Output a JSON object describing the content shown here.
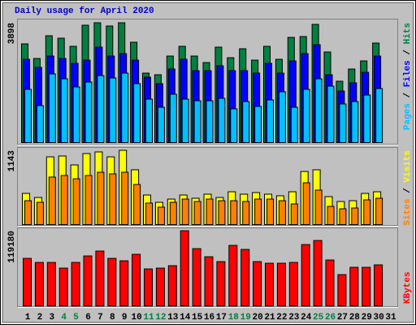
{
  "chart_data": [
    {
      "type": "bar",
      "title": "Daily usage for April 2020",
      "title_color": "#0000cc",
      "ylim": [
        0,
        3898
      ],
      "yticks": [
        3898
      ],
      "legend_separator": " / ",
      "series": [
        {
          "name": "Hits",
          "color": "#008040",
          "values": [
            3209,
            2731,
            3474,
            3394,
            3129,
            3818,
            3898,
            3792,
            3898,
            3262,
            2254,
            2201,
            2811,
            3129,
            2811,
            2599,
            3102,
            2758,
            3049,
            2678,
            3129,
            2705,
            3421,
            3447,
            3845,
            2943,
            1989,
            2387,
            2652,
            3235,
            null
          ]
        },
        {
          "name": "Files",
          "color": "#0000ff",
          "values": [
            2705,
            2440,
            2811,
            2731,
            2572,
            2678,
            3102,
            2811,
            2890,
            2678,
            2121,
            1909,
            2387,
            2705,
            2334,
            2334,
            2493,
            2334,
            2334,
            2254,
            2572,
            2254,
            2652,
            2890,
            3182,
            2201,
            1670,
            1936,
            2280,
            2811,
            null
          ]
        },
        {
          "name": "Pages",
          "color": "#00c0ff",
          "values": [
            1724,
            1193,
            2227,
            2068,
            1803,
            1962,
            2174,
            2095,
            2254,
            1909,
            1405,
            1140,
            1564,
            1405,
            1352,
            1352,
            1432,
            1087,
            1326,
            1167,
            1379,
            1644,
            1140,
            1724,
            2068,
            1829,
            1246,
            1326,
            1538,
            1750,
            null
          ]
        }
      ]
    },
    {
      "type": "bar",
      "ylim": [
        0,
        1143
      ],
      "yticks": [
        1143
      ],
      "legend_separator": " / ",
      "series": [
        {
          "name": "Visits",
          "color": "#ffff00",
          "values": [
            477,
            414,
            1042,
            1055,
            917,
            1093,
            1118,
            1042,
            1143,
            842,
            452,
            339,
            389,
            452,
            402,
            465,
            414,
            502,
            465,
            490,
            465,
            440,
            502,
            816,
            842,
            427,
            352,
            364,
            477,
            502,
            null
          ]
        },
        {
          "name": "Sites",
          "color": "#ff8000",
          "values": [
            364,
            339,
            729,
            754,
            703,
            754,
            804,
            779,
            804,
            615,
            327,
            264,
            339,
            389,
            352,
            389,
            364,
            364,
            352,
            389,
            389,
            364,
            314,
            641,
            528,
            276,
            239,
            251,
            377,
            402,
            null
          ]
        }
      ]
    },
    {
      "type": "bar",
      "ylim": [
        0,
        119180
      ],
      "yticks": [
        119180
      ],
      "categories": [
        "1",
        "2",
        "3",
        "4",
        "5",
        "6",
        "7",
        "8",
        "9",
        "10",
        "11",
        "12",
        "13",
        "14",
        "15",
        "16",
        "17",
        "18",
        "19",
        "20",
        "21",
        "22",
        "23",
        "24",
        "25",
        "26",
        "27",
        "28",
        "29",
        "30",
        "31"
      ],
      "category_colors": [
        "#000000",
        "#000000",
        "#000000",
        "#008040",
        "#008040",
        "#000000",
        "#000000",
        "#000000",
        "#000000",
        "#000000",
        "#008040",
        "#008040",
        "#000000",
        "#000000",
        "#000000",
        "#000000",
        "#000000",
        "#008040",
        "#008040",
        "#000000",
        "#000000",
        "#000000",
        "#000000",
        "#000000",
        "#008040",
        "#008040",
        "#000000",
        "#000000",
        "#000000",
        "#000000",
        "#000000"
      ],
      "series": [
        {
          "name": "KBytes",
          "color": "#ff0000",
          "values": [
            75135,
            68658,
            68658,
            59590,
            68658,
            79021,
            86794,
            75135,
            71249,
            81612,
            58295,
            59590,
            63477,
            119180,
            90680,
            77726,
            69954,
            95862,
            89385,
            69954,
            67363,
            67363,
            68658,
            97158,
            103635,
            72545,
            49226,
            60885,
            60885,
            64772,
            null
          ]
        }
      ]
    }
  ]
}
